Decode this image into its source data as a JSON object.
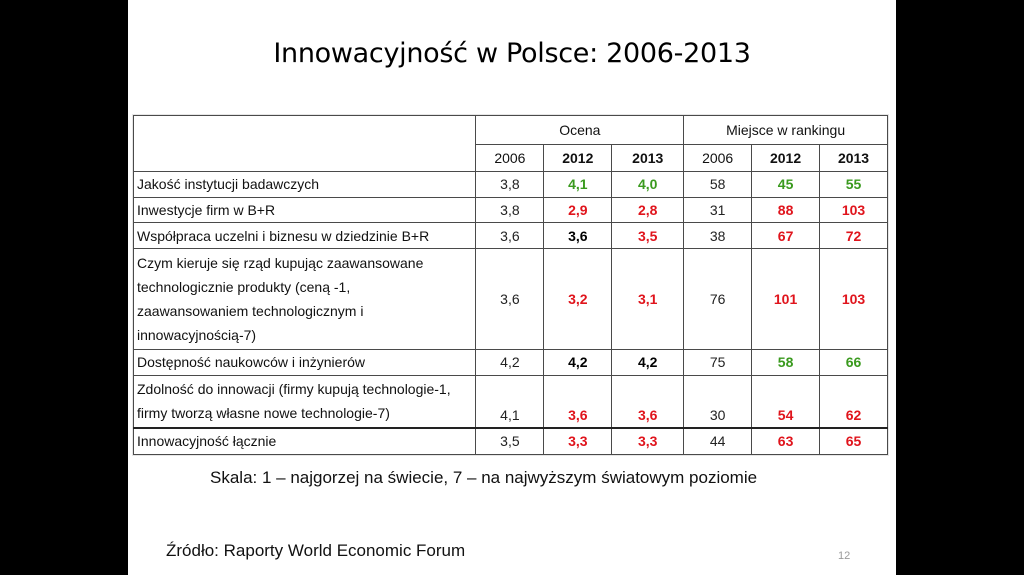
{
  "title": "Innowacyjność w Polsce: 2006-2013",
  "table": {
    "group_headers": {
      "ocena": "Ocena",
      "miejsce": "Miejsce w rankingu"
    },
    "years": [
      "2006",
      "2012",
      "2013",
      "2006",
      "2012",
      "2013"
    ],
    "rows": [
      {
        "label": "Jakość instytucji badawczych",
        "values": [
          "3,8",
          "4,1",
          "4,0",
          "58",
          "45",
          "55"
        ],
        "colors": [
          "normal",
          "green",
          "green",
          "normal",
          "green",
          "green"
        ]
      },
      {
        "label": "Inwestycje firm w B+R",
        "values": [
          "3,8",
          "2,9",
          "2,8",
          "31",
          "88",
          "103"
        ],
        "colors": [
          "normal",
          "red",
          "red",
          "normal",
          "red",
          "red"
        ]
      },
      {
        "label": "Współpraca uczelni i biznesu w dziedzinie B+R",
        "values": [
          "3,6",
          "3,6",
          "3,5",
          "38",
          "67",
          "72"
        ],
        "colors": [
          "normal",
          "black",
          "red",
          "normal",
          "red",
          "red"
        ]
      },
      {
        "label_lines": [
          "Czym kieruje się rząd kupując zaawansowane",
          "technologicznie produkty (ceną -1,",
          "zaawansowaniem technologicznym i",
          "innowacyjnością-7)"
        ],
        "values": [
          "3,6",
          "3,2",
          "3,1",
          "76",
          "101",
          "103"
        ],
        "colors": [
          "normal",
          "red",
          "red",
          "normal",
          "red",
          "red"
        ]
      },
      {
        "label": "Dostępność naukowców i inżynierów",
        "values": [
          "4,2",
          "4,2",
          "4,2",
          "75",
          "58",
          "66"
        ],
        "colors": [
          "normal",
          "black",
          "black",
          "normal",
          "green",
          "green"
        ]
      },
      {
        "label_lines": [
          "Zdolność do innowacji (firmy kupują technologie-1,",
          "firmy tworzą własne nowe technologie-7)"
        ],
        "values": [
          "4,1",
          "3,6",
          "3,6",
          "30",
          "54",
          "62"
        ],
        "colors": [
          "normal",
          "red",
          "red",
          "normal",
          "red",
          "red"
        ]
      },
      {
        "label": "Innowacyjność łącznie",
        "values": [
          "3,5",
          "3,3",
          "3,3",
          "44",
          "63",
          "65"
        ],
        "colors": [
          "normal",
          "red",
          "red",
          "normal",
          "red",
          "red"
        ]
      }
    ]
  },
  "scale_note": "Skala: 1 – najgorzej na świecie, 7 – na najwyższym światowym poziomie",
  "source_note": "Źródło: Raporty World Economic Forum",
  "page_number": "12",
  "colors": {
    "green": "#3a9a1e",
    "red": "#e0141c",
    "black": "#000000"
  }
}
